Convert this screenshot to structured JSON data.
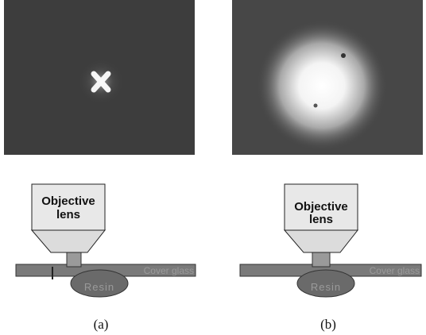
{
  "panels": [
    {
      "objective_label": [
        "Objective",
        "lens"
      ],
      "cover_glass_label": "Cover glass",
      "resin_label": "Resin",
      "caption": "(a)"
    },
    {
      "objective_label": [
        "Objective",
        "lens"
      ],
      "cover_glass_label": "Cover glass",
      "resin_label": "Resin",
      "caption": "(b)"
    }
  ]
}
